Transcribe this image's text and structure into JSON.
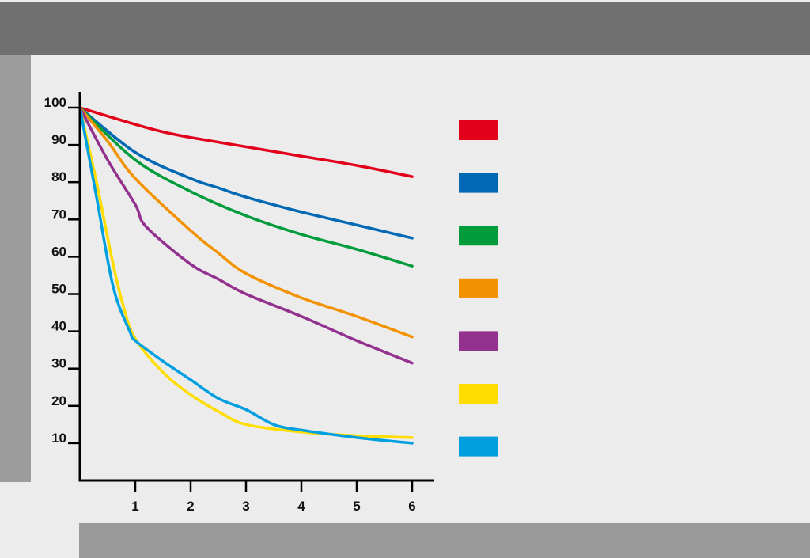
{
  "chart_data": {
    "type": "line",
    "title": "",
    "xlabel": "",
    "ylabel": "",
    "xlim": [
      0,
      6
    ],
    "ylim": [
      0,
      100
    ],
    "x_ticks": [
      1,
      2,
      3,
      4,
      5,
      6
    ],
    "y_ticks": [
      10,
      20,
      30,
      40,
      50,
      60,
      70,
      80,
      90,
      100
    ],
    "grid": false,
    "legend_position": "right",
    "series": [
      {
        "color": "#e2001a",
        "x": [
          0,
          1,
          1.5,
          2,
          3,
          4,
          5,
          6
        ],
        "y": [
          100,
          95.5,
          93.5,
          92,
          89.5,
          87,
          84.5,
          81.5
        ]
      },
      {
        "color": "#0068b4",
        "x": [
          0,
          1,
          2,
          2.5,
          3,
          4,
          5,
          6
        ],
        "y": [
          100,
          88,
          81,
          78.5,
          76,
          72,
          68.5,
          65
        ]
      },
      {
        "color": "#009b3a",
        "x": [
          0,
          1,
          2,
          3,
          4,
          5,
          6
        ],
        "y": [
          100,
          86,
          77.5,
          71,
          66,
          62,
          57.5
        ]
      },
      {
        "color": "#f39200",
        "x": [
          0,
          0.5,
          1,
          2,
          2.5,
          3,
          4,
          5,
          6
        ],
        "y": [
          100,
          91,
          81,
          67,
          61,
          55.5,
          49,
          44,
          38.5
        ]
      },
      {
        "color": "#93328e",
        "x": [
          0,
          0.5,
          1,
          1.2,
          2,
          2.5,
          3,
          4,
          5,
          6
        ],
        "y": [
          100,
          86,
          74,
          68,
          58,
          54,
          50,
          44,
          37.5,
          31.5
        ]
      },
      {
        "color": "#ffdd00",
        "x": [
          0,
          0.3,
          0.6,
          0.8,
          1,
          1.5,
          2,
          2.5,
          3,
          4,
          5,
          6
        ],
        "y": [
          100,
          80,
          58,
          46,
          38,
          29,
          23,
          18.5,
          15,
          13,
          12,
          11.5
        ]
      },
      {
        "color": "#00a0e0",
        "x": [
          0,
          0.3,
          0.6,
          0.9,
          1,
          1.5,
          2,
          2.5,
          3,
          3.5,
          4,
          5,
          6
        ],
        "y": [
          100,
          76,
          52,
          40,
          37.5,
          32,
          27,
          22,
          19,
          15,
          13.5,
          11.5,
          10
        ]
      }
    ]
  }
}
